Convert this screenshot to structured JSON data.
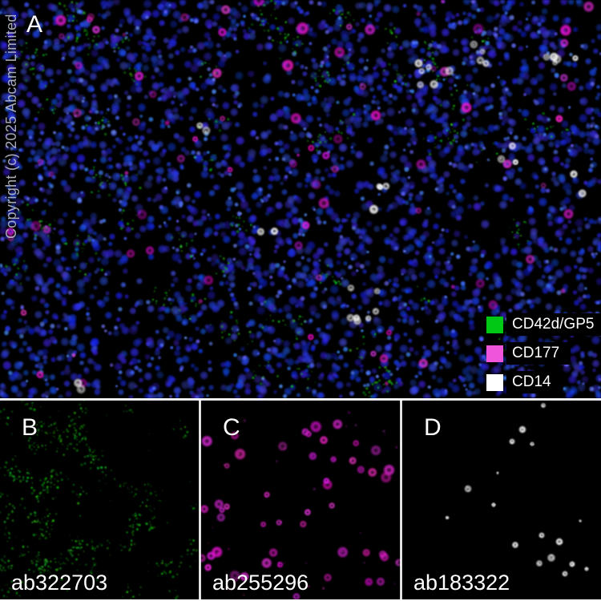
{
  "figure": {
    "copyright": "Copyright (c) 2025 Abcam Limited",
    "panel_a": {
      "label": "A"
    },
    "legend": {
      "entries": [
        {
          "label": "CD42d/GP5",
          "color": "#00c814"
        },
        {
          "label": "CD177",
          "color": "#ee55db"
        },
        {
          "label": "CD14",
          "color": "#ffffff"
        }
      ]
    },
    "sub_panels": [
      {
        "label": "B",
        "catalog": "ab322703",
        "channel": "green"
      },
      {
        "label": "C",
        "catalog": "ab255296",
        "channel": "magenta"
      },
      {
        "label": "D",
        "catalog": "ab183322",
        "channel": "white"
      }
    ],
    "colors": {
      "background": "#000000",
      "separator": "#ffffff",
      "nuclei_blue": "#2a38e2",
      "green_channel": "#16c316",
      "magenta_channel": "#da1ec8",
      "white_channel": "#ffffff",
      "label_text": "#ffffff",
      "copyright_text": "#c4c7d1"
    }
  }
}
